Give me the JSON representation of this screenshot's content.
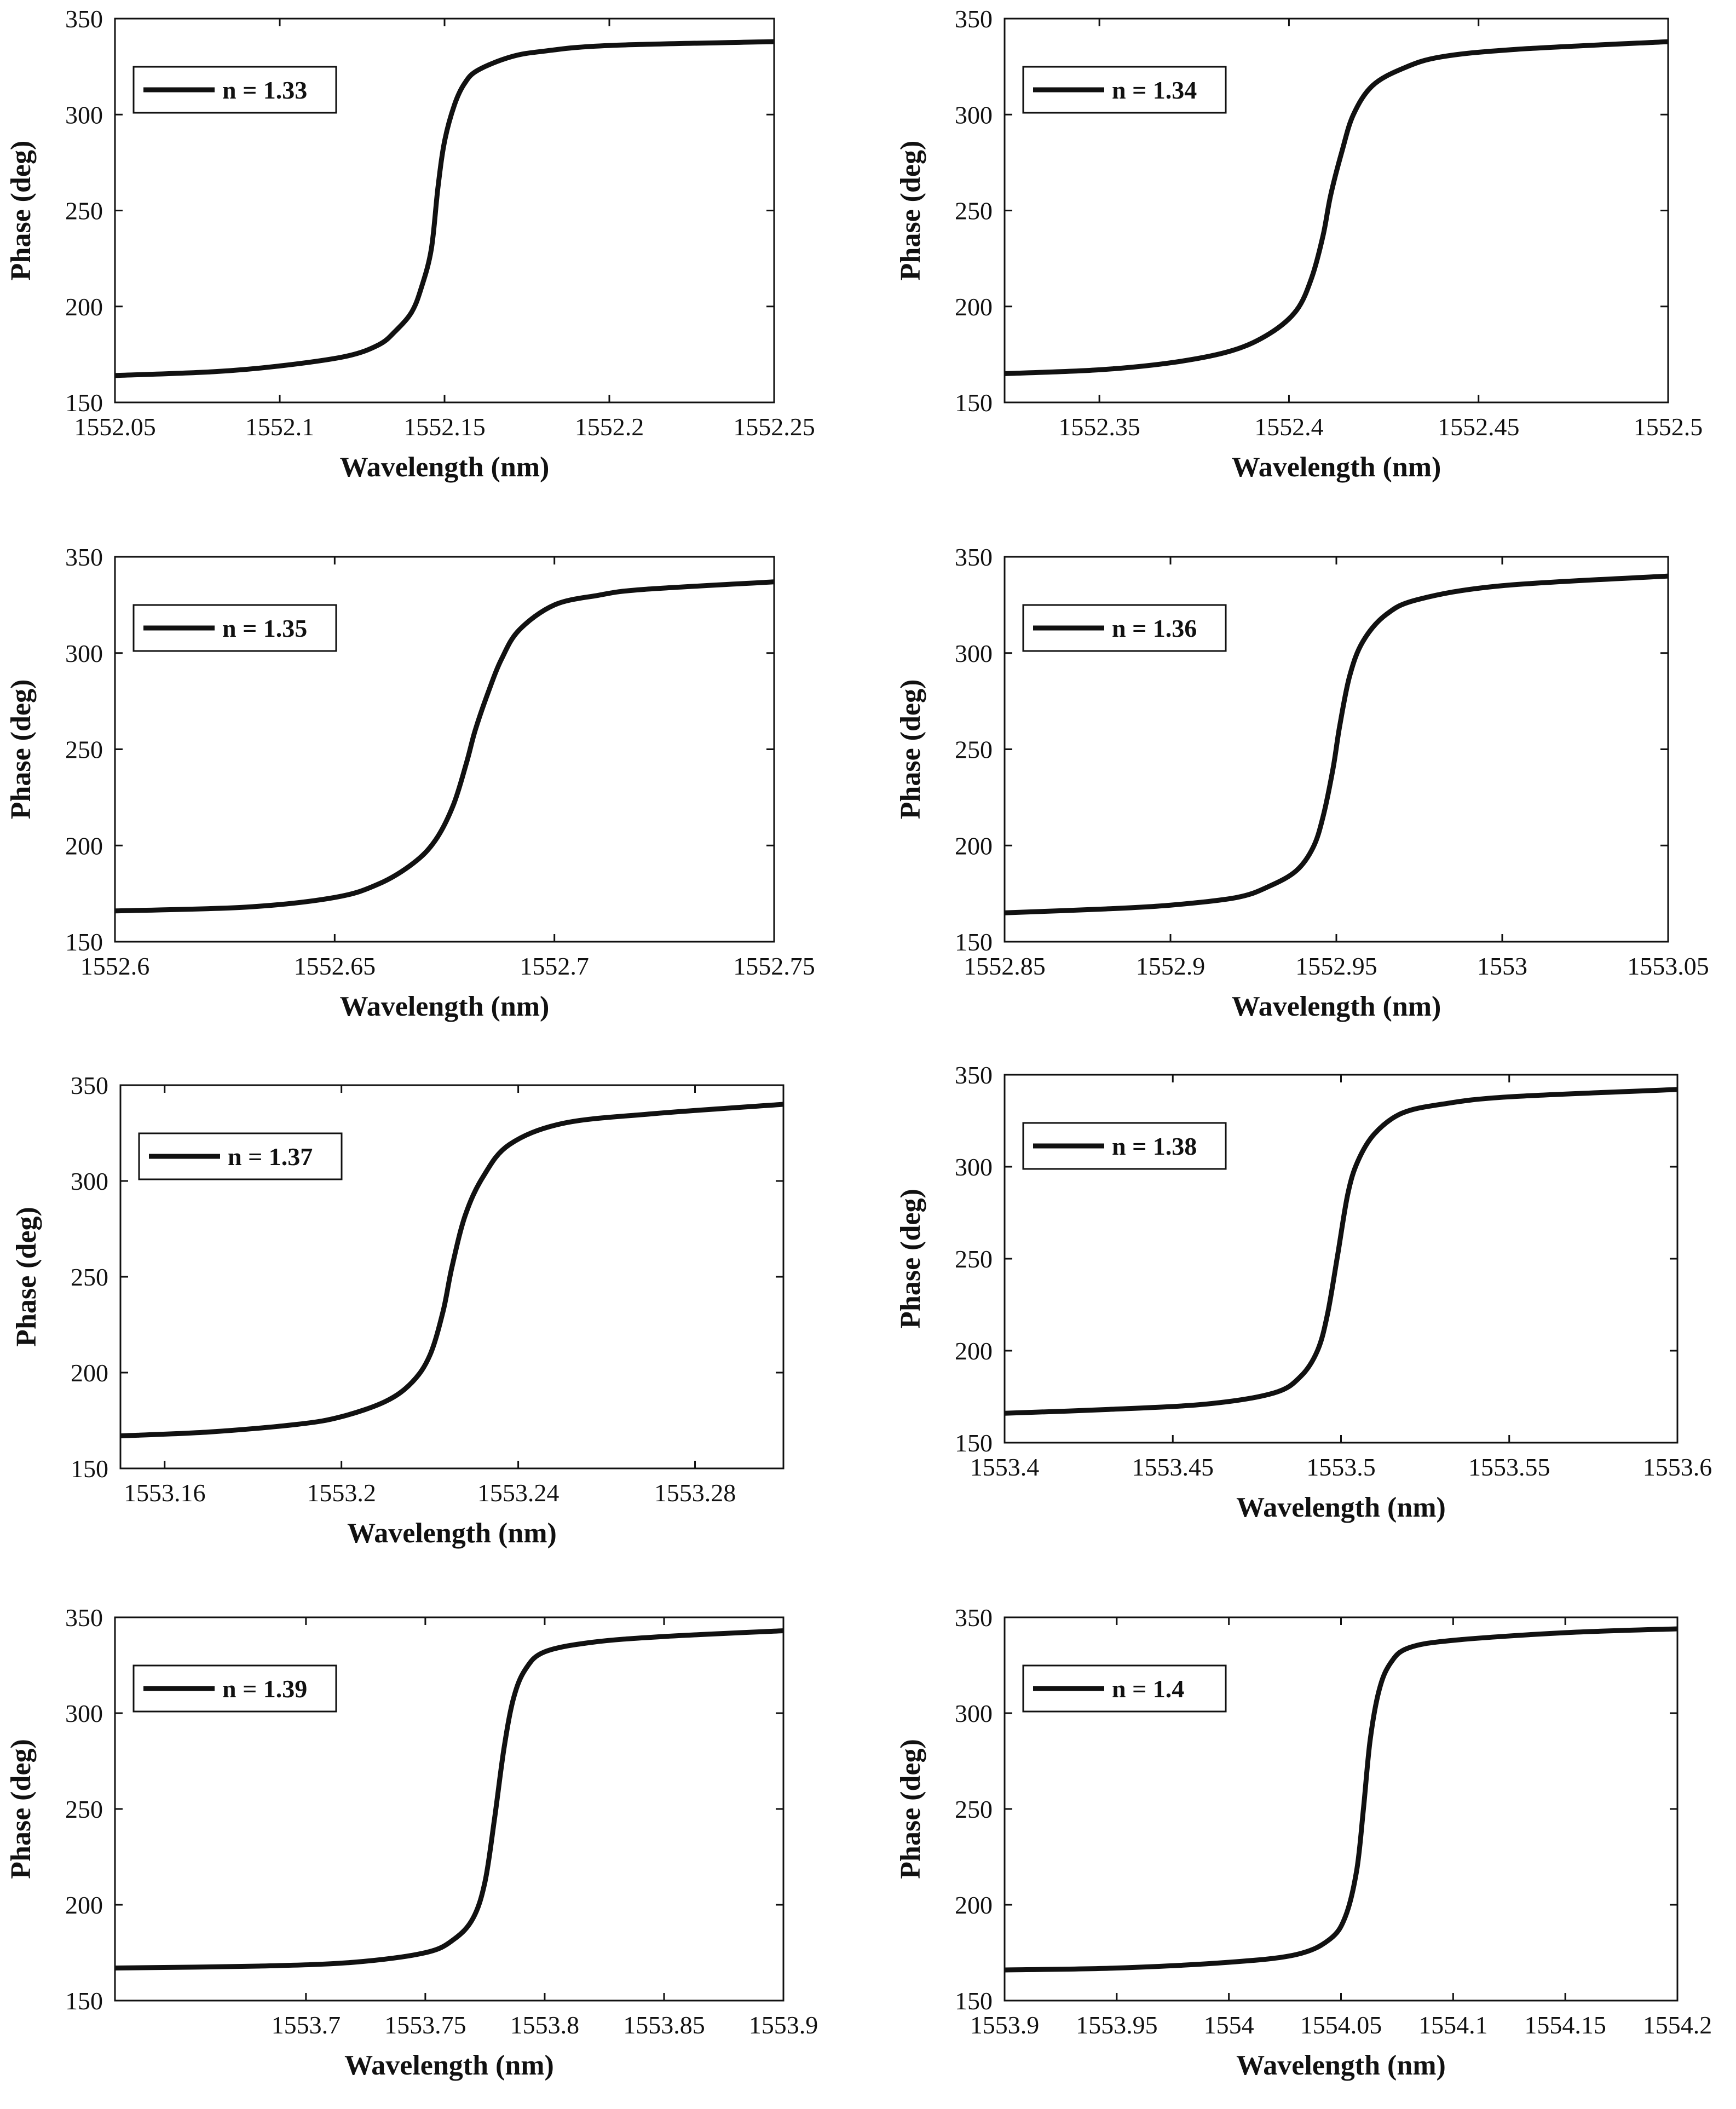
{
  "figure": {
    "background": "#ffffff",
    "line_color": "#111111",
    "axis_color": "#111111"
  },
  "chart_data": [
    {
      "type": "line",
      "title": "",
      "legend": "n = 1.33",
      "legend_position": "top-left",
      "xlabel": "Wavelength (nm)",
      "ylabel": "Phase (deg)",
      "xlim": [
        1552.05,
        1552.25
      ],
      "ylim": [
        150,
        350
      ],
      "xticks": [
        1552.05,
        1552.1,
        1552.15,
        1552.2,
        1552.25
      ],
      "xtick_labels": [
        "1552.05",
        "1552.1",
        "1552.15",
        "1552.2",
        "1552.25"
      ],
      "yticks": [
        150,
        200,
        250,
        300,
        350
      ],
      "ytick_labels": [
        "150",
        "200",
        "250",
        "300",
        "350"
      ],
      "x": [
        1552.05,
        1552.08,
        1552.1,
        1552.12,
        1552.13,
        1552.135,
        1552.14,
        1552.143,
        1552.146,
        1552.148,
        1552.15,
        1552.153,
        1552.156,
        1552.16,
        1552.17,
        1552.18,
        1552.2,
        1552.25
      ],
      "y": [
        164,
        166,
        169,
        174,
        180,
        187,
        197,
        210,
        230,
        262,
        286,
        305,
        316,
        323,
        330,
        333,
        336,
        338
      ]
    },
    {
      "type": "line",
      "title": "",
      "legend": "n = 1.34",
      "legend_position": "top-left",
      "xlabel": "Wavelength (nm)",
      "ylabel": "Phase (deg)",
      "xlim": [
        1552.325,
        1552.5
      ],
      "ylim": [
        150,
        350
      ],
      "xticks": [
        1552.35,
        1552.4,
        1552.45,
        1552.5
      ],
      "xtick_labels": [
        "1552.35",
        "1552.4",
        "1552.45",
        "1552.5"
      ],
      "yticks": [
        150,
        200,
        250,
        300,
        350
      ],
      "ytick_labels": [
        "150",
        "200",
        "250",
        "300",
        "350"
      ],
      "x": [
        1552.325,
        1552.35,
        1552.37,
        1552.385,
        1552.395,
        1552.402,
        1552.406,
        1552.409,
        1552.411,
        1552.414,
        1552.417,
        1552.422,
        1552.43,
        1552.44,
        1552.46,
        1552.5
      ],
      "y": [
        165,
        167,
        171,
        177,
        186,
        198,
        215,
        237,
        258,
        281,
        300,
        315,
        324,
        330,
        334,
        338
      ]
    },
    {
      "type": "line",
      "title": "",
      "legend": "n = 1.35",
      "legend_position": "top-left",
      "xlabel": "Wavelength (nm)",
      "ylabel": "Phase (deg)",
      "xlim": [
        1552.6,
        1552.75
      ],
      "ylim": [
        150,
        350
      ],
      "xticks": [
        1552.6,
        1552.65,
        1552.7,
        1552.75
      ],
      "xtick_labels": [
        "1552.6",
        "1552.65",
        "1552.7",
        "1552.75"
      ],
      "yticks": [
        150,
        200,
        250,
        300,
        350
      ],
      "ytick_labels": [
        "150",
        "200",
        "250",
        "300",
        "350"
      ],
      "x": [
        1552.6,
        1552.63,
        1552.65,
        1552.66,
        1552.668,
        1552.673,
        1552.677,
        1552.68,
        1552.682,
        1552.685,
        1552.688,
        1552.692,
        1552.7,
        1552.71,
        1552.72,
        1552.75
      ],
      "y": [
        166,
        168,
        173,
        180,
        191,
        203,
        221,
        243,
        260,
        280,
        297,
        312,
        325,
        330,
        333,
        337
      ]
    },
    {
      "type": "line",
      "title": "",
      "legend": "n = 1.36",
      "legend_position": "top-left",
      "xlabel": "Wavelength (nm)",
      "ylabel": "Phase (deg)",
      "xlim": [
        1552.85,
        1553.05
      ],
      "ylim": [
        150,
        350
      ],
      "xticks": [
        1552.85,
        1552.9,
        1552.95,
        1553.0,
        1553.05
      ],
      "xtick_labels": [
        "1552.85",
        "1552.9",
        "1552.95",
        "1553",
        "1553.05"
      ],
      "yticks": [
        150,
        200,
        250,
        300,
        350
      ],
      "ytick_labels": [
        "150",
        "200",
        "250",
        "300",
        "350"
      ],
      "x": [
        1552.85,
        1552.88,
        1552.9,
        1552.92,
        1552.93,
        1552.938,
        1552.943,
        1552.946,
        1552.949,
        1552.951,
        1552.954,
        1552.958,
        1552.965,
        1552.975,
        1553.0,
        1553.05
      ],
      "y": [
        165,
        167,
        169,
        173,
        179,
        187,
        199,
        215,
        240,
        262,
        288,
        306,
        320,
        328,
        335,
        340
      ]
    },
    {
      "type": "line",
      "title": "",
      "legend": "n = 1.37",
      "legend_position": "top-left",
      "xlabel": "Wavelength (nm)",
      "ylabel": "Phase (deg)",
      "xlim": [
        1553.15,
        1553.3
      ],
      "ylim": [
        150,
        350
      ],
      "xticks": [
        1553.16,
        1553.2,
        1553.24,
        1553.28
      ],
      "xtick_labels": [
        "1553.16",
        "1553.2",
        "1553.24",
        "1553.28"
      ],
      "yticks": [
        150,
        200,
        250,
        300,
        350
      ],
      "ytick_labels": [
        "150",
        "200",
        "250",
        "300",
        "350"
      ],
      "x": [
        1553.15,
        1553.17,
        1553.19,
        1553.2,
        1553.21,
        1553.216,
        1553.22,
        1553.223,
        1553.225,
        1553.228,
        1553.232,
        1553.238,
        1553.25,
        1553.27,
        1553.3
      ],
      "y": [
        167,
        169,
        173,
        177,
        185,
        195,
        209,
        232,
        255,
        282,
        302,
        319,
        330,
        335,
        340
      ]
    },
    {
      "type": "line",
      "title": "",
      "legend": "n = 1.38",
      "legend_position": "top-left",
      "xlabel": "Wavelength (nm)",
      "ylabel": "Phase (deg)",
      "xlim": [
        1553.4,
        1553.6
      ],
      "ylim": [
        150,
        350
      ],
      "xticks": [
        1553.4,
        1553.45,
        1553.5,
        1553.55,
        1553.6
      ],
      "xtick_labels": [
        "1553.4",
        "1553.45",
        "1553.5",
        "1553.55",
        "1553.6"
      ],
      "yticks": [
        150,
        200,
        250,
        300,
        350
      ],
      "ytick_labels": [
        "150",
        "200",
        "250",
        "300",
        "350"
      ],
      "x": [
        1553.4,
        1553.43,
        1553.46,
        1553.48,
        1553.488,
        1553.493,
        1553.496,
        1553.499,
        1553.502,
        1553.505,
        1553.51,
        1553.518,
        1553.53,
        1553.55,
        1553.6
      ],
      "y": [
        166,
        168,
        171,
        177,
        186,
        200,
        220,
        252,
        285,
        303,
        318,
        329,
        334,
        338,
        342
      ]
    },
    {
      "type": "line",
      "title": "",
      "legend": "n = 1.39",
      "legend_position": "top-left",
      "xlabel": "Wavelength (nm)",
      "ylabel": "Phase (deg)",
      "xlim": [
        1553.62,
        1553.9
      ],
      "ylim": [
        150,
        350
      ],
      "xticks": [
        1553.7,
        1553.75,
        1553.8,
        1553.85,
        1553.9
      ],
      "xtick_labels": [
        "1553.7",
        "1553.75",
        "1553.8",
        "1553.85",
        "1553.9"
      ],
      "yticks": [
        150,
        200,
        250,
        300,
        350
      ],
      "ytick_labels": [
        "150",
        "200",
        "250",
        "300",
        "350"
      ],
      "x": [
        1553.62,
        1553.68,
        1553.72,
        1553.75,
        1553.762,
        1553.77,
        1553.775,
        1553.779,
        1553.783,
        1553.787,
        1553.792,
        1553.8,
        1553.82,
        1553.85,
        1553.9
      ],
      "y": [
        167,
        168,
        170,
        175,
        182,
        193,
        212,
        245,
        282,
        308,
        323,
        332,
        337,
        340,
        343
      ]
    },
    {
      "type": "line",
      "title": "",
      "legend": "n = 1.4",
      "legend_position": "top-left",
      "xlabel": "Wavelength (nm)",
      "ylabel": "Phase (deg)",
      "xlim": [
        1553.9,
        1554.2
      ],
      "ylim": [
        150,
        350
      ],
      "xticks": [
        1553.9,
        1553.95,
        1554.0,
        1554.05,
        1554.1,
        1554.15,
        1554.2
      ],
      "xtick_labels": [
        "1553.9",
        "1553.95",
        "1554",
        "1554.05",
        "1554.1",
        "1554.15",
        "1554.2"
      ],
      "yticks": [
        150,
        200,
        250,
        300,
        350
      ],
      "ytick_labels": [
        "150",
        "200",
        "250",
        "300",
        "350"
      ],
      "x": [
        1553.9,
        1553.95,
        1554.0,
        1554.03,
        1554.045,
        1554.052,
        1554.057,
        1554.06,
        1554.063,
        1554.067,
        1554.072,
        1554.08,
        1554.1,
        1554.15,
        1554.2
      ],
      "y": [
        166,
        167,
        170,
        174,
        182,
        194,
        218,
        250,
        286,
        312,
        326,
        334,
        338,
        342,
        344
      ]
    }
  ]
}
